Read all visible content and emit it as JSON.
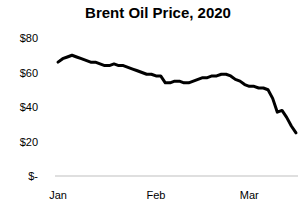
{
  "chart_data": {
    "type": "line",
    "title": "Brent Oil Price, 2020",
    "categories": [
      "Jan",
      null,
      null,
      null,
      null,
      null,
      null,
      null,
      null,
      null,
      null,
      null,
      null,
      null,
      null,
      null,
      null,
      null,
      null,
      null,
      null,
      "Feb",
      null,
      null,
      null,
      null,
      null,
      null,
      null,
      null,
      null,
      null,
      null,
      null,
      null,
      null,
      null,
      null,
      null,
      null,
      null,
      "Mar",
      null,
      null,
      null,
      null,
      null,
      null,
      null,
      null,
      null,
      null
    ],
    "values": [
      66,
      68,
      69,
      70,
      69,
      68,
      67,
      66,
      66,
      65,
      64,
      64,
      65,
      64,
      64,
      63,
      62,
      61,
      60,
      59,
      59,
      58,
      58,
      54,
      54,
      55,
      55,
      54,
      54,
      55,
      56,
      57,
      57,
      58,
      58,
      59,
      59,
      58,
      56,
      55,
      53,
      52,
      52,
      51,
      51,
      50,
      45,
      37,
      38,
      34,
      29,
      25
    ],
    "color": "#000000",
    "ylim": [
      0,
      80
    ],
    "yticks": [
      {
        "value": 0,
        "label": "$-"
      },
      {
        "value": 20,
        "label": "$20"
      },
      {
        "value": 40,
        "label": "$40"
      },
      {
        "value": 60,
        "label": "$60"
      },
      {
        "value": 80,
        "label": "$80"
      }
    ],
    "grid": false
  }
}
